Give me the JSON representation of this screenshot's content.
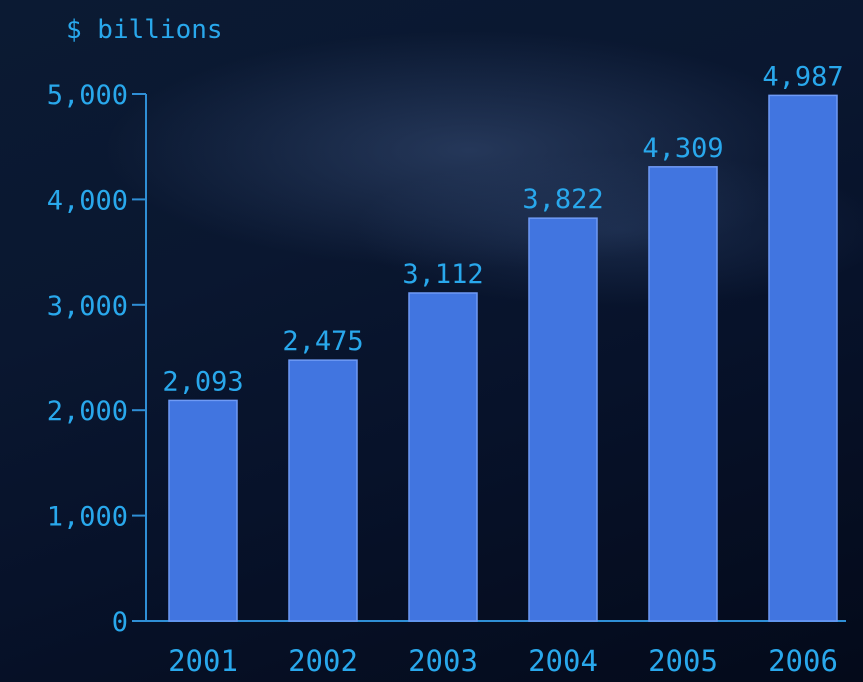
{
  "chart_data": {
    "type": "bar",
    "ylabel": "$ billions",
    "categories": [
      "2001",
      "2002",
      "2003",
      "2004",
      "2005",
      "2006"
    ],
    "values": [
      2093,
      2475,
      3112,
      3822,
      4309,
      4987
    ],
    "value_labels": [
      "2,093",
      "2,475",
      "3,112",
      "3,822",
      "4,309",
      "4,987"
    ],
    "ylim": [
      0,
      5000
    ],
    "yticks": [
      0,
      1000,
      2000,
      3000,
      4000,
      5000
    ],
    "ytick_labels": [
      "0",
      "1,000",
      "2,000",
      "3,000",
      "4,000",
      "5,000"
    ],
    "grid": false,
    "colors": {
      "bar": "#4175e0",
      "bar_edge": "#6f9af5",
      "text": "#29a8ec",
      "axis": "#2f8fd6"
    }
  }
}
